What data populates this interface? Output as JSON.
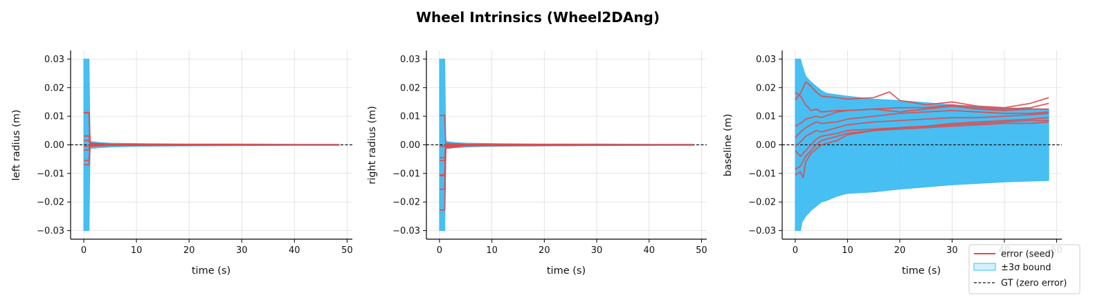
{
  "title": "Wheel Intrinsics (Wheel2DAng)",
  "colors": {
    "error": "#e04a4a",
    "band_fill": "#3dbcf2",
    "legend_band": "#d4f0fd",
    "gt": "#111111",
    "grid": "#dddddd"
  },
  "legend": {
    "placement": "bottom-right",
    "entries": [
      "error (seed)",
      "±3σ bound",
      "GT (zero error)"
    ]
  },
  "chart_data": [
    {
      "type": "line",
      "xlabel": "time (s)",
      "ylabel": "left radius (m)",
      "xlim": [
        -2.5,
        51
      ],
      "ylim": [
        -0.033,
        0.033
      ],
      "xticks": [
        0,
        10,
        20,
        30,
        40,
        50
      ],
      "yticks": [
        -0.03,
        -0.02,
        -0.01,
        0.0,
        0.01,
        0.02,
        0.03
      ],
      "grid": true,
      "gt_value": 0.0,
      "band": {
        "x": [
          0,
          1,
          1.2,
          2,
          3,
          5,
          8,
          12,
          20,
          30,
          40,
          48.5
        ],
        "upper": [
          0.03,
          0.03,
          0.0012,
          0.001,
          0.0008,
          0.0006,
          0.0005,
          0.0004,
          0.0003,
          0.0003,
          0.0002,
          0.0002
        ],
        "lower": [
          -0.03,
          -0.03,
          -0.0012,
          -0.0012,
          -0.001,
          -0.0008,
          -0.0006,
          -0.0005,
          -0.0004,
          -0.0003,
          -0.0002,
          -0.0002
        ]
      },
      "series": [
        {
          "x": [
            0,
            1,
            1.2,
            5,
            48.5
          ],
          "values": [
            0.0113,
            0.0113,
            0.0006,
            0.0002,
            0.0
          ]
        },
        {
          "x": [
            0,
            1,
            1.2,
            5,
            48.5
          ],
          "values": [
            0.0112,
            0.0112,
            0.0005,
            0.0002,
            0.0
          ]
        },
        {
          "x": [
            0,
            1,
            1.2,
            5,
            48.5
          ],
          "values": [
            0.0031,
            0.0031,
            0.0003,
            0.0001,
            0.0
          ]
        },
        {
          "x": [
            0,
            1,
            1.2,
            5,
            48.5
          ],
          "values": [
            0.0015,
            0.0015,
            0.0002,
            0.0001,
            0.0
          ]
        },
        {
          "x": [
            0,
            1,
            1.2,
            5,
            48.5
          ],
          "values": [
            -0.0005,
            -0.0005,
            0.0,
            0.0,
            0.0
          ]
        },
        {
          "x": [
            0,
            1,
            1.2,
            5,
            48.5
          ],
          "values": [
            -0.0018,
            -0.0018,
            -0.0002,
            -0.0001,
            0.0
          ]
        },
        {
          "x": [
            0,
            1,
            1.2,
            5,
            48.5
          ],
          "values": [
            -0.0055,
            -0.0055,
            -0.0004,
            -0.0001,
            0.0
          ]
        },
        {
          "x": [
            0,
            1,
            1.2,
            5,
            48.5
          ],
          "values": [
            -0.007,
            -0.007,
            -0.0005,
            -0.0002,
            0.0
          ]
        }
      ]
    },
    {
      "type": "line",
      "xlabel": "time (s)",
      "ylabel": "right radius (m)",
      "xlim": [
        -2.5,
        51
      ],
      "ylim": [
        -0.033,
        0.033
      ],
      "xticks": [
        0,
        10,
        20,
        30,
        40,
        50
      ],
      "yticks": [
        -0.03,
        -0.02,
        -0.01,
        0.0,
        0.01,
        0.02,
        0.03
      ],
      "grid": true,
      "gt_value": 0.0,
      "band": {
        "x": [
          0,
          1,
          1.2,
          2,
          3,
          5,
          8,
          12,
          20,
          30,
          40,
          48.5
        ],
        "upper": [
          0.03,
          0.03,
          0.0012,
          0.001,
          0.0008,
          0.0006,
          0.0005,
          0.0004,
          0.0003,
          0.0003,
          0.0002,
          0.0002
        ],
        "lower": [
          -0.03,
          -0.03,
          -0.0012,
          -0.0012,
          -0.001,
          -0.0008,
          -0.0006,
          -0.0005,
          -0.0004,
          -0.0003,
          -0.0002,
          -0.0002
        ]
      },
      "series": [
        {
          "x": [
            0,
            1,
            1.2,
            5,
            48.5
          ],
          "values": [
            0.0103,
            0.0103,
            0.0005,
            0.0002,
            0.0
          ]
        },
        {
          "x": [
            0,
            1,
            1.2,
            5,
            48.5
          ],
          "values": [
            -0.0005,
            -0.0005,
            0.0001,
            0.0,
            0.0
          ]
        },
        {
          "x": [
            0,
            1,
            1.2,
            5,
            48.5
          ],
          "values": [
            -0.0045,
            -0.0045,
            -0.0003,
            -0.0001,
            0.0
          ]
        },
        {
          "x": [
            0,
            1,
            1.2,
            5,
            48.5
          ],
          "values": [
            -0.0055,
            -0.0055,
            -0.0004,
            -0.0001,
            0.0
          ]
        },
        {
          "x": [
            0,
            1,
            1.2,
            5,
            48.5
          ],
          "values": [
            -0.0105,
            -0.0105,
            -0.0006,
            -0.0002,
            0.0
          ]
        },
        {
          "x": [
            0,
            1,
            1.2,
            5,
            48.5
          ],
          "values": [
            -0.0108,
            -0.0108,
            -0.0007,
            -0.0002,
            0.0
          ]
        },
        {
          "x": [
            0,
            1,
            1.2,
            5,
            48.5
          ],
          "values": [
            -0.0155,
            -0.0155,
            -0.0009,
            -0.0003,
            0.0
          ]
        },
        {
          "x": [
            0,
            1,
            1.2,
            5,
            48.5
          ],
          "values": [
            -0.0228,
            -0.0228,
            -0.0012,
            -0.0003,
            0.0
          ]
        }
      ]
    },
    {
      "type": "line",
      "xlabel": "time (s)",
      "ylabel": "baseline (m)",
      "xlim": [
        -2.5,
        51
      ],
      "ylim": [
        -0.033,
        0.033
      ],
      "xticks": [
        0,
        10,
        20,
        30,
        40,
        50
      ],
      "yticks": [
        -0.03,
        -0.02,
        -0.01,
        0.0,
        0.01,
        0.02,
        0.03
      ],
      "grid": true,
      "gt_value": 0.0,
      "band": {
        "x": [
          0,
          1,
          1.3,
          2,
          3,
          4,
          5,
          6,
          8,
          10,
          15,
          20,
          30,
          40,
          48.5
        ],
        "upper": [
          0.03,
          0.03,
          0.028,
          0.024,
          0.022,
          0.0205,
          0.019,
          0.018,
          0.0175,
          0.017,
          0.016,
          0.0155,
          0.014,
          0.013,
          0.0125
        ],
        "lower": [
          -0.03,
          -0.03,
          -0.027,
          -0.025,
          -0.023,
          -0.0215,
          -0.02,
          -0.0195,
          -0.018,
          -0.017,
          -0.0165,
          -0.0155,
          -0.014,
          -0.013,
          -0.0125
        ]
      },
      "series": [
        {
          "x": [
            0,
            1,
            2,
            3,
            4,
            5,
            8,
            10,
            15,
            18,
            20,
            25,
            30,
            35,
            40,
            45,
            48.5
          ],
          "values": [
            0.0157,
            0.018,
            0.022,
            0.0205,
            0.0185,
            0.017,
            0.0165,
            0.016,
            0.0165,
            0.0185,
            0.0155,
            0.014,
            0.015,
            0.0135,
            0.013,
            0.0145,
            0.0165
          ]
        },
        {
          "x": [
            0,
            1,
            2,
            3,
            4,
            5,
            8,
            10,
            15,
            20,
            25,
            30,
            35,
            40,
            45,
            48.5
          ],
          "values": [
            0.0183,
            0.017,
            0.014,
            0.012,
            0.0125,
            0.0115,
            0.012,
            0.012,
            0.0125,
            0.013,
            0.013,
            0.014,
            0.013,
            0.0125,
            0.013,
            0.0145
          ]
        },
        {
          "x": [
            0,
            1,
            2,
            3,
            4,
            5,
            8,
            10,
            15,
            20,
            25,
            30,
            35,
            40,
            45,
            48.5
          ],
          "values": [
            0.0065,
            0.0075,
            0.009,
            0.0095,
            0.01,
            0.0095,
            0.0115,
            0.012,
            0.0125,
            0.0115,
            0.0125,
            0.0135,
            0.0125,
            0.012,
            0.0125,
            0.0125
          ]
        },
        {
          "x": [
            0,
            1,
            2,
            3,
            4,
            5,
            8,
            10,
            15,
            20,
            25,
            30,
            35,
            40,
            45,
            48.5
          ],
          "values": [
            0.0025,
            0.0045,
            0.006,
            0.007,
            0.008,
            0.0075,
            0.008,
            0.009,
            0.01,
            0.011,
            0.0115,
            0.012,
            0.0115,
            0.011,
            0.011,
            0.0115
          ]
        },
        {
          "x": [
            0,
            1,
            2,
            3,
            4,
            5,
            8,
            10,
            15,
            20,
            25,
            30,
            35,
            40,
            45,
            48.5
          ],
          "values": [
            -0.0005,
            0.001,
            0.003,
            0.004,
            0.005,
            0.0045,
            0.006,
            0.007,
            0.008,
            0.0085,
            0.009,
            0.0095,
            0.0095,
            0.01,
            0.0105,
            0.011
          ]
        },
        {
          "x": [
            0,
            1,
            2,
            3,
            4,
            5,
            8,
            10,
            15,
            20,
            25,
            30,
            35,
            40,
            45,
            48.5
          ],
          "values": [
            -0.002,
            -0.004,
            -0.002,
            0.0,
            0.002,
            0.003,
            0.004,
            0.005,
            0.0055,
            0.006,
            0.0065,
            0.0075,
            0.008,
            0.0085,
            0.009,
            0.0095
          ]
        },
        {
          "x": [
            0,
            1,
            2,
            3,
            4,
            5,
            8,
            10,
            15,
            20,
            25,
            30,
            35,
            40,
            45,
            48.5
          ],
          "values": [
            -0.0085,
            -0.0075,
            -0.004,
            -0.002,
            0.0,
            0.0015,
            0.003,
            0.004,
            0.005,
            0.006,
            0.0065,
            0.007,
            0.0075,
            0.008,
            0.0085,
            0.0085
          ]
        },
        {
          "x": [
            0,
            1,
            1.5,
            2,
            3,
            4,
            5,
            8,
            10,
            15,
            20,
            25,
            30,
            35,
            40,
            45,
            48.5
          ],
          "values": [
            -0.0105,
            -0.0095,
            -0.0115,
            -0.006,
            -0.003,
            -0.0015,
            0.0,
            0.0015,
            0.0035,
            0.005,
            0.0055,
            0.006,
            0.0065,
            0.007,
            0.0075,
            0.0075,
            0.008
          ]
        }
      ]
    }
  ]
}
